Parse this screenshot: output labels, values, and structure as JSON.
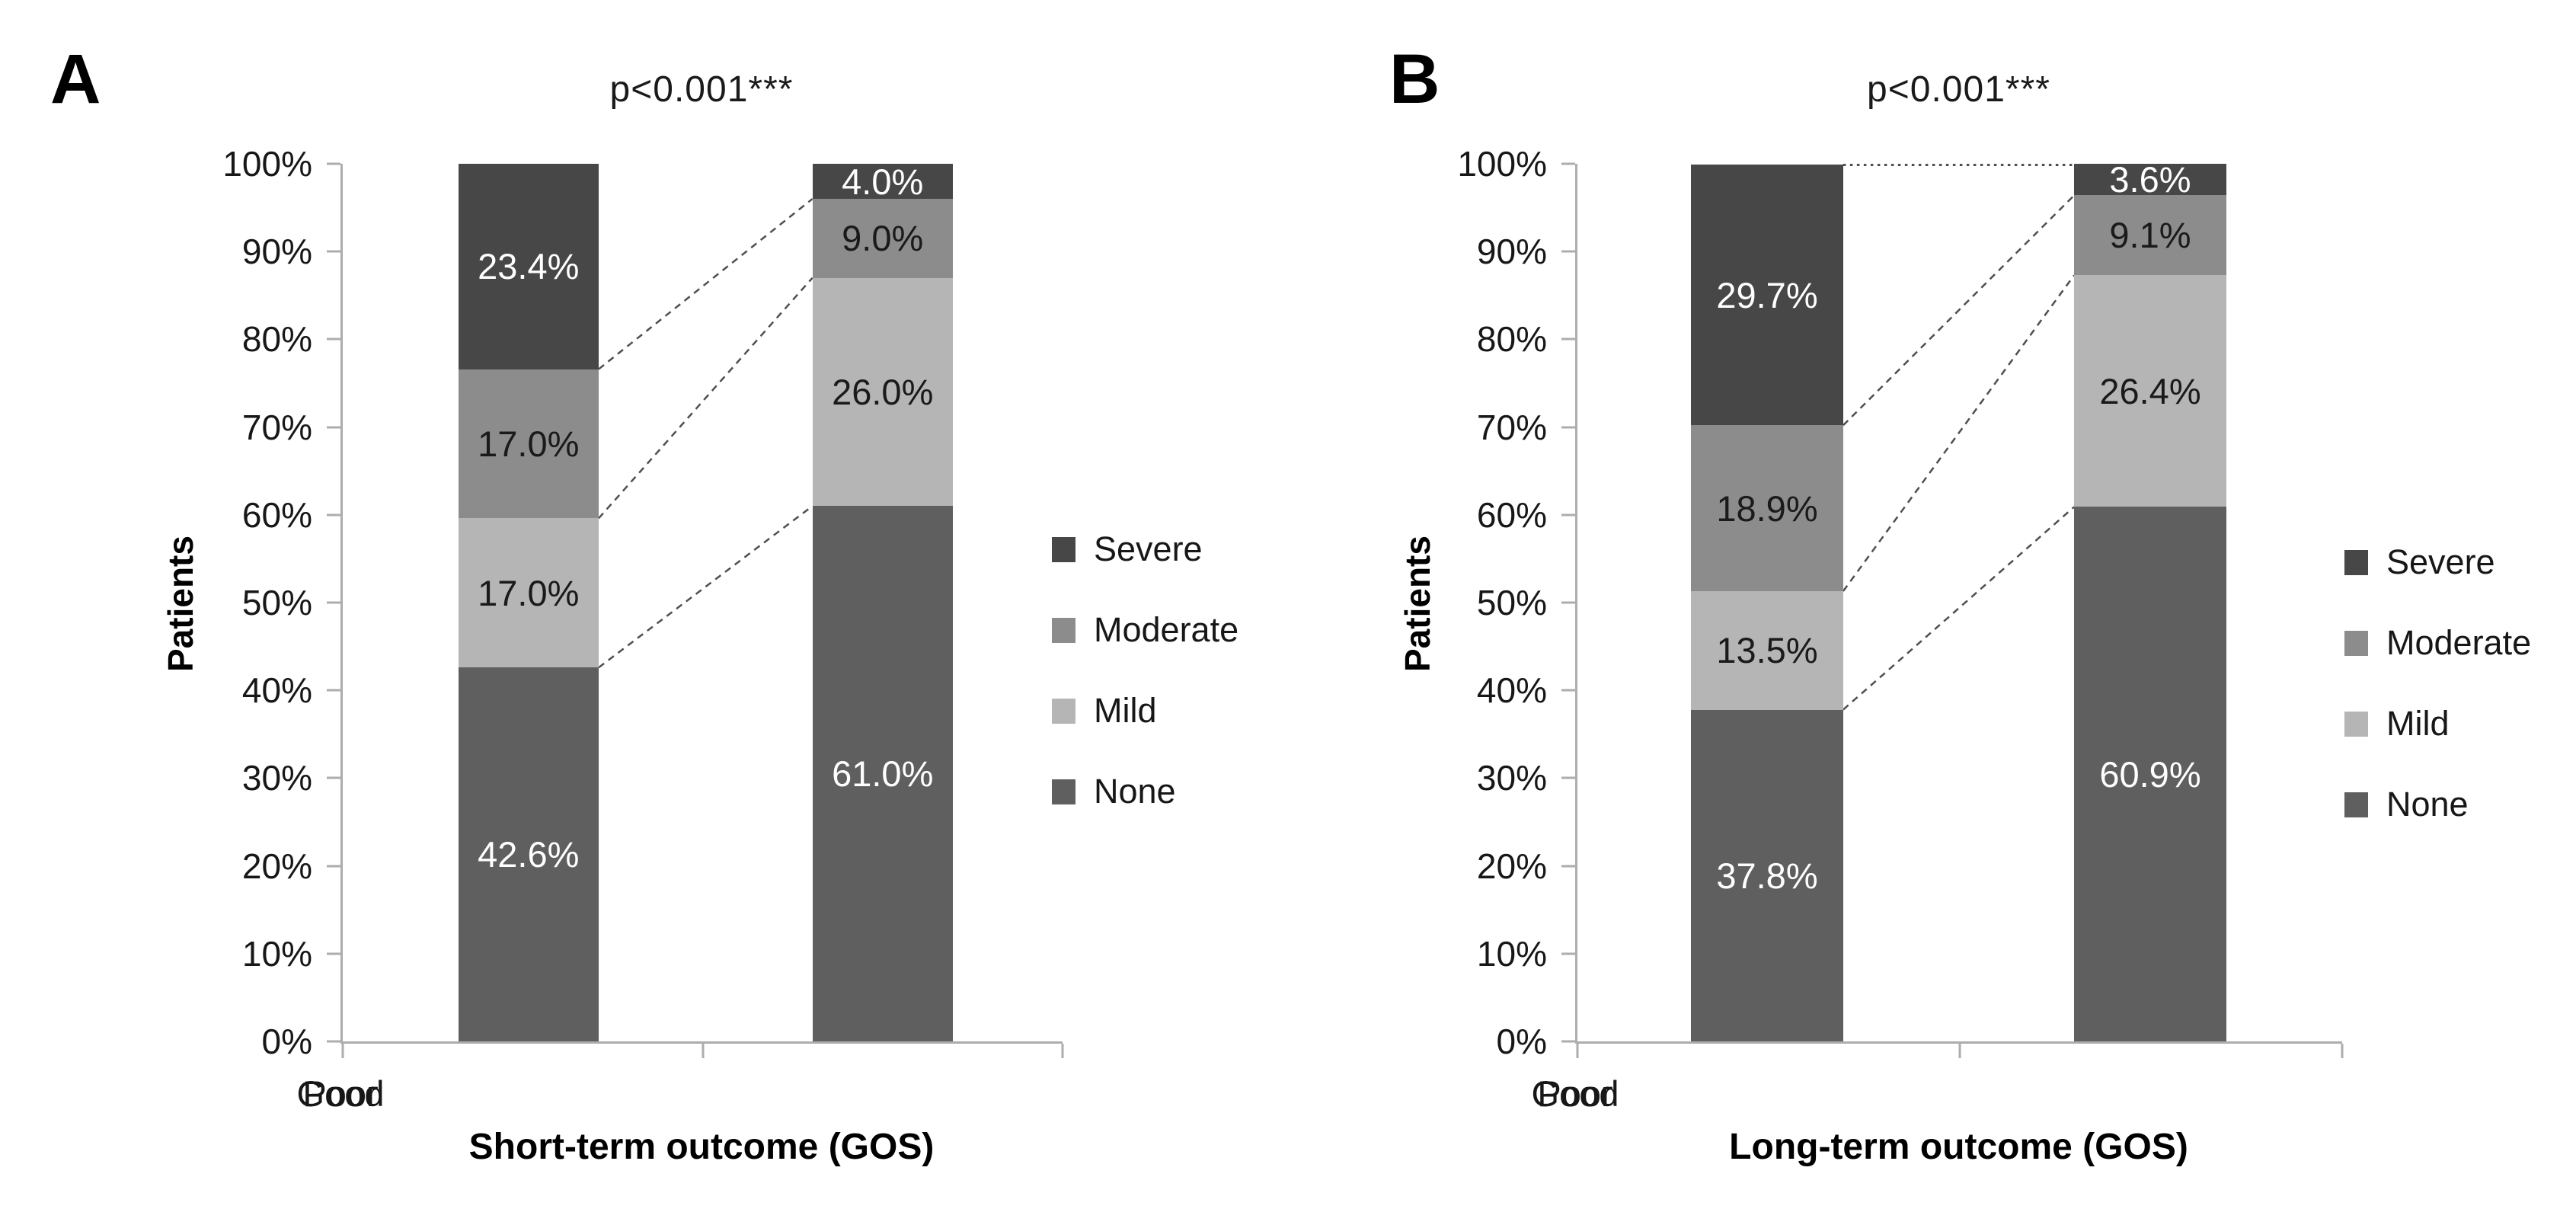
{
  "figure": {
    "background": "#ffffff",
    "axis_color": "#adadad",
    "connector_color": "#4f4f4f",
    "text_color": "#171717"
  },
  "chart_data": [
    {
      "type": "bar",
      "stacked": true,
      "panel_label": "A",
      "title": "p<0.001***",
      "ylabel": "Patients",
      "xlabel": "Short-term outcome (GOS)",
      "categories": [
        "Poor",
        "Good"
      ],
      "yticks": [
        "100%",
        "90%",
        "80%",
        "70%",
        "60%",
        "50%",
        "40%",
        "30%",
        "20%",
        "10%",
        "0%"
      ],
      "ylim": [
        0,
        100
      ],
      "grid": false,
      "legend_position": "right",
      "stack_order_bottom_to_top": [
        "None",
        "Mild",
        "Moderate",
        "Severe"
      ],
      "series": [
        {
          "name": "Severe",
          "color": "#474747",
          "label_color": "#ffffff",
          "values": [
            23.4,
            4.0
          ],
          "labels": [
            "23.4%",
            "4.0%"
          ]
        },
        {
          "name": "Moderate",
          "color": "#8c8c8c",
          "label_color": "#1a1a1a",
          "values": [
            17.0,
            9.0
          ],
          "labels": [
            "17.0%",
            "9.0%"
          ]
        },
        {
          "name": "Mild",
          "color": "#b5b5b5",
          "label_color": "#1a1a1a",
          "values": [
            17.0,
            26.0
          ],
          "labels": [
            "17.0%",
            "26.0%"
          ]
        },
        {
          "name": "None",
          "color": "#5f5f5f",
          "label_color": "#ffffff",
          "values": [
            42.6,
            61.0
          ],
          "labels": [
            "42.6%",
            "61.0%"
          ]
        }
      ],
      "connector_lines_pct": [
        [
          76.6,
          96.0
        ],
        [
          59.6,
          87.0
        ],
        [
          42.6,
          61.0
        ]
      ],
      "top_dotted_line": false
    },
    {
      "type": "bar",
      "stacked": true,
      "panel_label": "B",
      "title": "p<0.001***",
      "ylabel": "Patients",
      "xlabel": "Long-term outcome (GOS)",
      "categories": [
        "Poor",
        "Good"
      ],
      "yticks": [
        "100%",
        "90%",
        "80%",
        "70%",
        "60%",
        "50%",
        "40%",
        "30%",
        "20%",
        "10%",
        "0%"
      ],
      "ylim": [
        0,
        100
      ],
      "grid": false,
      "legend_position": "right",
      "stack_order_bottom_to_top": [
        "None",
        "Mild",
        "Moderate",
        "Severe"
      ],
      "series": [
        {
          "name": "Severe",
          "color": "#474747",
          "label_color": "#ffffff",
          "values": [
            29.7,
            3.6
          ],
          "labels": [
            "29.7%",
            "3.6%"
          ]
        },
        {
          "name": "Moderate",
          "color": "#8c8c8c",
          "label_color": "#1a1a1a",
          "values": [
            18.9,
            9.1
          ],
          "labels": [
            "18.9%",
            "9.1%"
          ]
        },
        {
          "name": "Mild",
          "color": "#b5b5b5",
          "label_color": "#1a1a1a",
          "values": [
            13.5,
            26.4
          ],
          "labels": [
            "13.5%",
            "26.4%"
          ]
        },
        {
          "name": "None",
          "color": "#5f5f5f",
          "label_color": "#ffffff",
          "values": [
            37.8,
            60.9
          ],
          "labels": [
            "37.8%",
            "60.9%"
          ]
        }
      ],
      "connector_lines_pct": [
        [
          70.2,
          96.4
        ],
        [
          51.3,
          87.3
        ],
        [
          37.8,
          60.9
        ]
      ],
      "top_dotted_line": true
    }
  ]
}
